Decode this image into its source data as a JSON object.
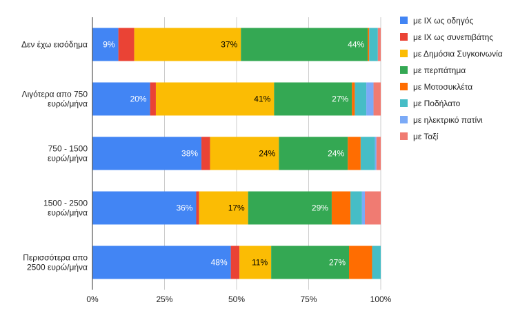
{
  "chart_data": {
    "type": "bar",
    "orientation": "horizontal",
    "stacked": "percent",
    "categories": [
      [
        "Δεν έχω εισόδημα"
      ],
      [
        "Λιγότερα απο 750",
        "ευρώ/μήνα"
      ],
      [
        "750 - 1500",
        "ευρώ/μήνα"
      ],
      [
        "1500 - 2500",
        "ευρώ/μήνα"
      ],
      [
        "Περισσότερα απο",
        "2500 ευρώ/μήνα"
      ]
    ],
    "series": [
      {
        "name": "με ΙΧ ως οδηγός",
        "color": "#4285F4",
        "label_color": "#ffffff",
        "values": [
          9,
          20,
          38,
          36,
          48
        ]
      },
      {
        "name": "με ΙΧ ως συνεπιβάτης",
        "color": "#EA4335",
        "label_color": "#ffffff",
        "values": [
          5.5,
          2,
          3,
          1,
          3
        ]
      },
      {
        "name": "με Δημόσια Συγκοινωνία",
        "color": "#FBBC04",
        "label_color": "#000000",
        "values": [
          37,
          41,
          24,
          17,
          11
        ]
      },
      {
        "name": "με περπάτημα",
        "color": "#34A853",
        "label_color": "#ffffff",
        "values": [
          44,
          27,
          24,
          29,
          27
        ]
      },
      {
        "name": "με Μοτοσυκλέτα",
        "color": "#FF6D01",
        "label_color": "#ffffff",
        "values": [
          0.5,
          1,
          4.5,
          6.5,
          8
        ]
      },
      {
        "name": "με Ποδήλατο",
        "color": "#46BDC6",
        "label_color": "#ffffff",
        "values": [
          3,
          4,
          5,
          4,
          3
        ]
      },
      {
        "name": "με ηλεκτρικό πατίνι",
        "color": "#7BAAF7",
        "label_color": "#ffffff",
        "values": [
          0,
          2.5,
          0.5,
          1,
          0
        ]
      },
      {
        "name": "με Ταξί",
        "color": "#F07B72",
        "label_color": "#ffffff",
        "values": [
          1,
          2.5,
          1.5,
          5.5,
          0
        ]
      }
    ],
    "data_labels": [
      [
        "9%",
        "",
        "37%",
        "44%",
        "",
        "",
        "",
        ""
      ],
      [
        "20%",
        "",
        "41%",
        "27%",
        "",
        "",
        "",
        ""
      ],
      [
        "38%",
        "",
        "24%",
        "24%",
        "",
        "",
        "",
        ""
      ],
      [
        "36%",
        "",
        "17%",
        "29%",
        "",
        "",
        "",
        ""
      ],
      [
        "48%",
        "",
        "11%",
        "27%",
        "",
        "",
        "",
        ""
      ]
    ],
    "x_ticks": [
      "0%",
      "25%",
      "50%",
      "75%",
      "100%"
    ],
    "xlim": [
      0,
      100
    ],
    "legend_position": "right",
    "grid": true
  }
}
